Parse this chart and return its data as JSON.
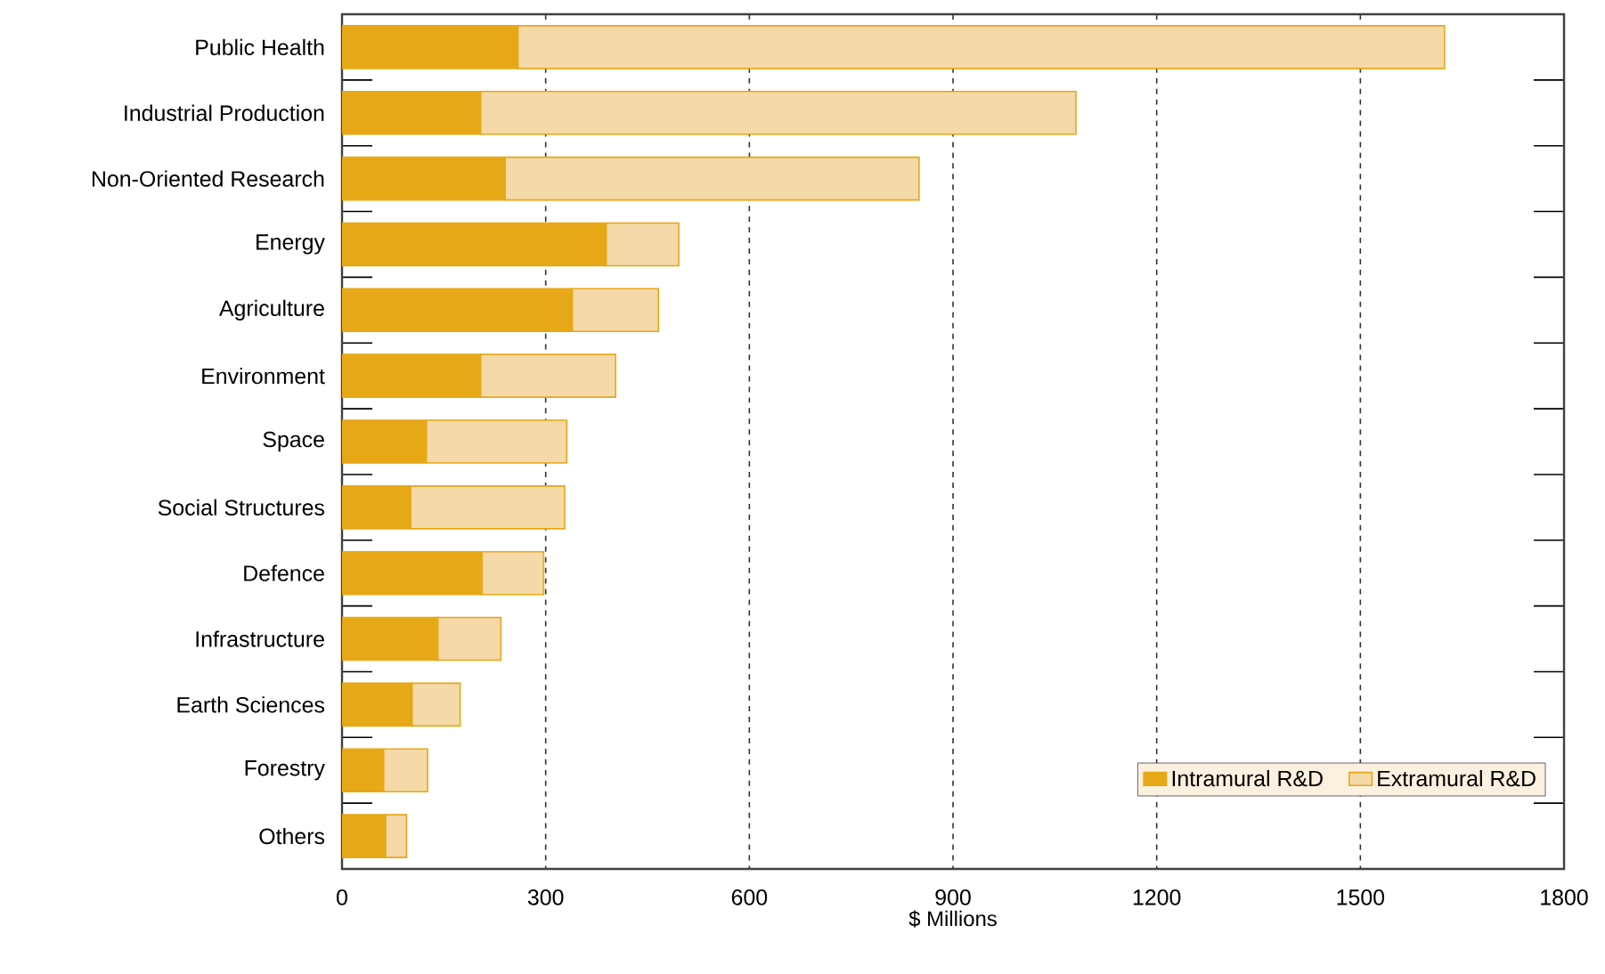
{
  "chart_data": {
    "type": "bar",
    "orientation": "horizontal",
    "stacked": true,
    "xlabel": "$ Millions",
    "categories": [
      "Public Health",
      "Industrial Production",
      "Non-Oriented Research",
      "Energy",
      "Agriculture",
      "Environment",
      "Space",
      "Social Structures",
      "Defence",
      "Infrastructure",
      "Earth Sciences",
      "Forestry",
      "Others"
    ],
    "series": [
      {
        "name": "Intramural R&D",
        "color": "#e6a817",
        "values": [
          259,
          204,
          240,
          389,
          339,
          204,
          124,
          101,
          206,
          141,
          103,
          61,
          64
        ]
      },
      {
        "name": "Extramural R&D",
        "color": "#f5d9a8",
        "values": [
          1365,
          877,
          610,
          107,
          127,
          199,
          207,
          227,
          91,
          93,
          71,
          65,
          31
        ]
      }
    ],
    "xlim": [
      0,
      1800
    ],
    "xticks": [
      0,
      300,
      600,
      900,
      1200,
      1500,
      1800
    ],
    "grid": "x",
    "legend": "bottom right"
  }
}
